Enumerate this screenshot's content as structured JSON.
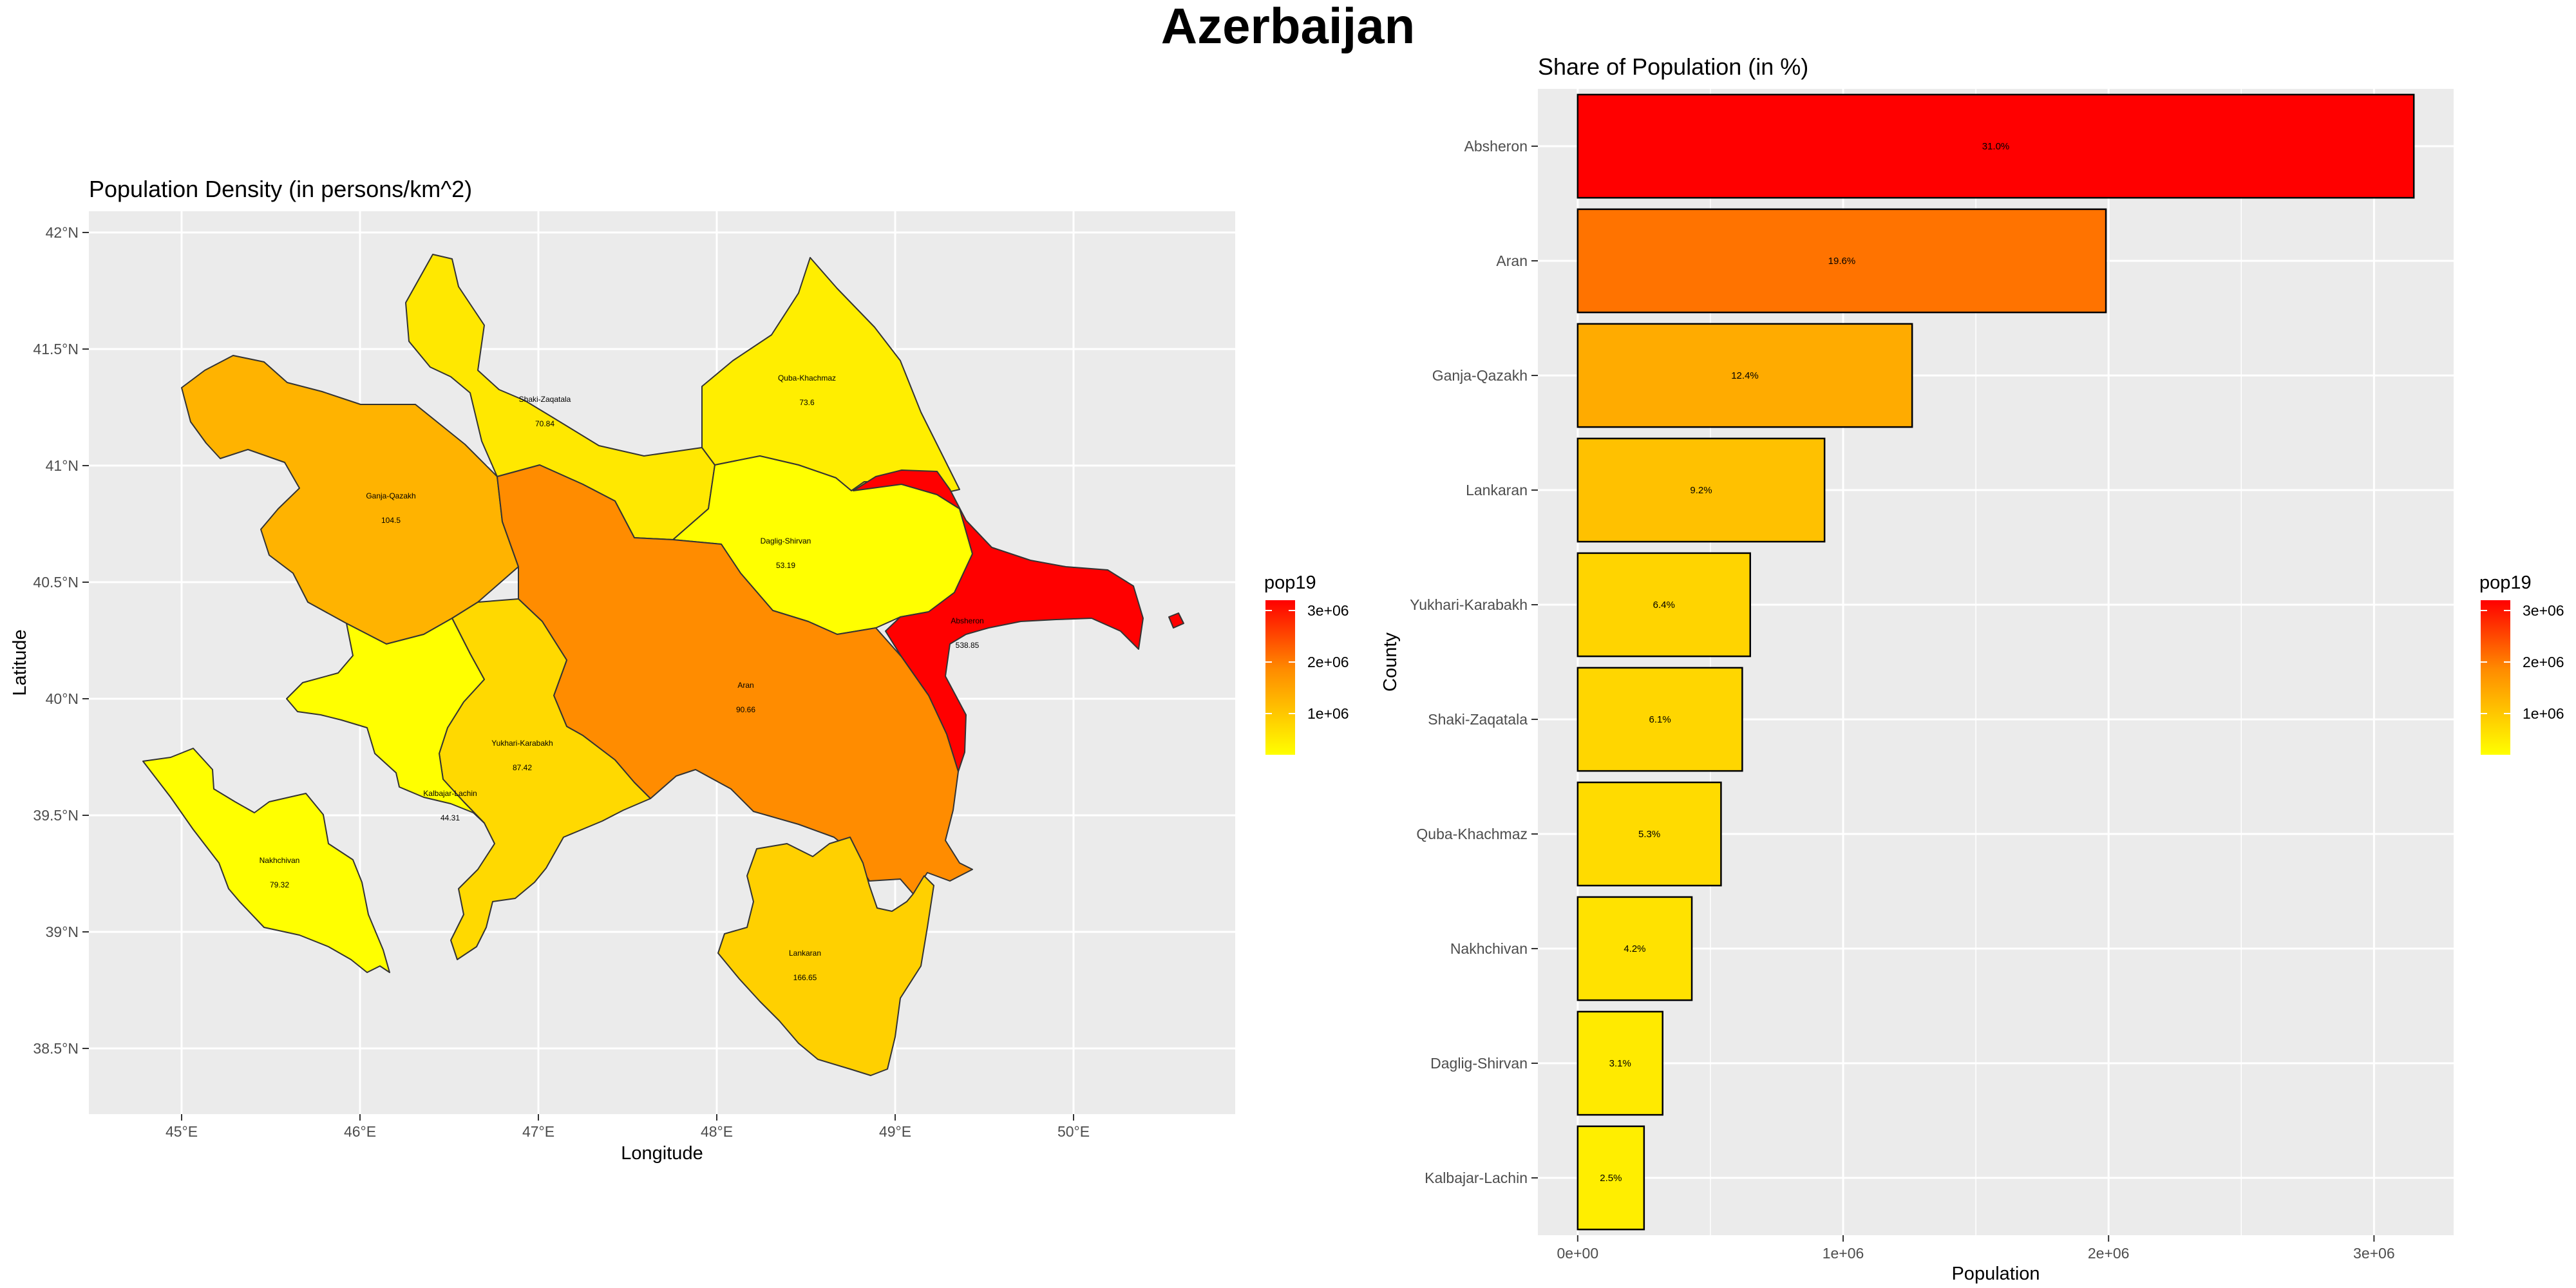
{
  "title": "Azerbaijan",
  "colors": {
    "panel_bg": "#ebebeb",
    "grid": "#ffffff",
    "low": "#ffff00",
    "mid": "#ff8c00",
    "high": "#ff0000"
  },
  "map": {
    "title": "Population Density (in persons/km^2)",
    "xlabel": "Longitude",
    "ylabel": "Latitude",
    "x_ticks": [
      "45°E",
      "46°E",
      "47°E",
      "48°E",
      "49°E",
      "50°E"
    ],
    "y_ticks": [
      "42°N",
      "41.5°N",
      "41°N",
      "40.5°N",
      "40°N",
      "39.5°N",
      "39°N",
      "38.5°N"
    ],
    "legend": {
      "title": "pop19",
      "ticks": [
        "3e+06",
        "2e+06",
        "1e+06"
      ]
    },
    "regions": [
      {
        "name": "Shaki-Zaqatala",
        "density": "70.84"
      },
      {
        "name": "Quba-Khachmaz",
        "density": "73.6"
      },
      {
        "name": "Ganja-Qazakh",
        "density": "104.5"
      },
      {
        "name": "Daglig-Shirvan",
        "density": "53.19"
      },
      {
        "name": "Absheron",
        "density": "538.85"
      },
      {
        "name": "Aran",
        "density": "90.66"
      },
      {
        "name": "Yukhari-Karabakh",
        "density": "87.42"
      },
      {
        "name": "Kalbajar-Lachin",
        "density": "44.31"
      },
      {
        "name": "Nakhchivan",
        "density": "79.32"
      },
      {
        "name": "Lankaran",
        "density": "166.65"
      }
    ]
  },
  "chart_data": {
    "type": "bar",
    "orientation": "horizontal",
    "title": "Share of Population (in %)",
    "xlabel": "Population",
    "ylabel": "County",
    "categories": [
      "Absheron",
      "Aran",
      "Ganja-Qazakh",
      "Lankaran",
      "Yukhari-Karabakh",
      "Shaki-Zaqatala",
      "Quba-Khachmaz",
      "Nakhchivan",
      "Daglig-Shirvan",
      "Kalbajar-Lachin"
    ],
    "values": [
      3150000,
      1990000,
      1260000,
      930000,
      650000,
      620000,
      540000,
      430000,
      320000,
      250000
    ],
    "labels": [
      "31.0%",
      "19.6%",
      "12.4%",
      "9.2%",
      "6.4%",
      "6.1%",
      "5.3%",
      "4.2%",
      "3.1%",
      "2.5%"
    ],
    "xlim": [
      -150000,
      3300000
    ],
    "x_ticks": [
      "0e+00",
      "1e+06",
      "2e+06",
      "3e+06"
    ],
    "color_scale": {
      "title": "pop19",
      "ticks": [
        "3e+06",
        "2e+06",
        "1e+06"
      ]
    },
    "grid": true,
    "legend": "right"
  }
}
